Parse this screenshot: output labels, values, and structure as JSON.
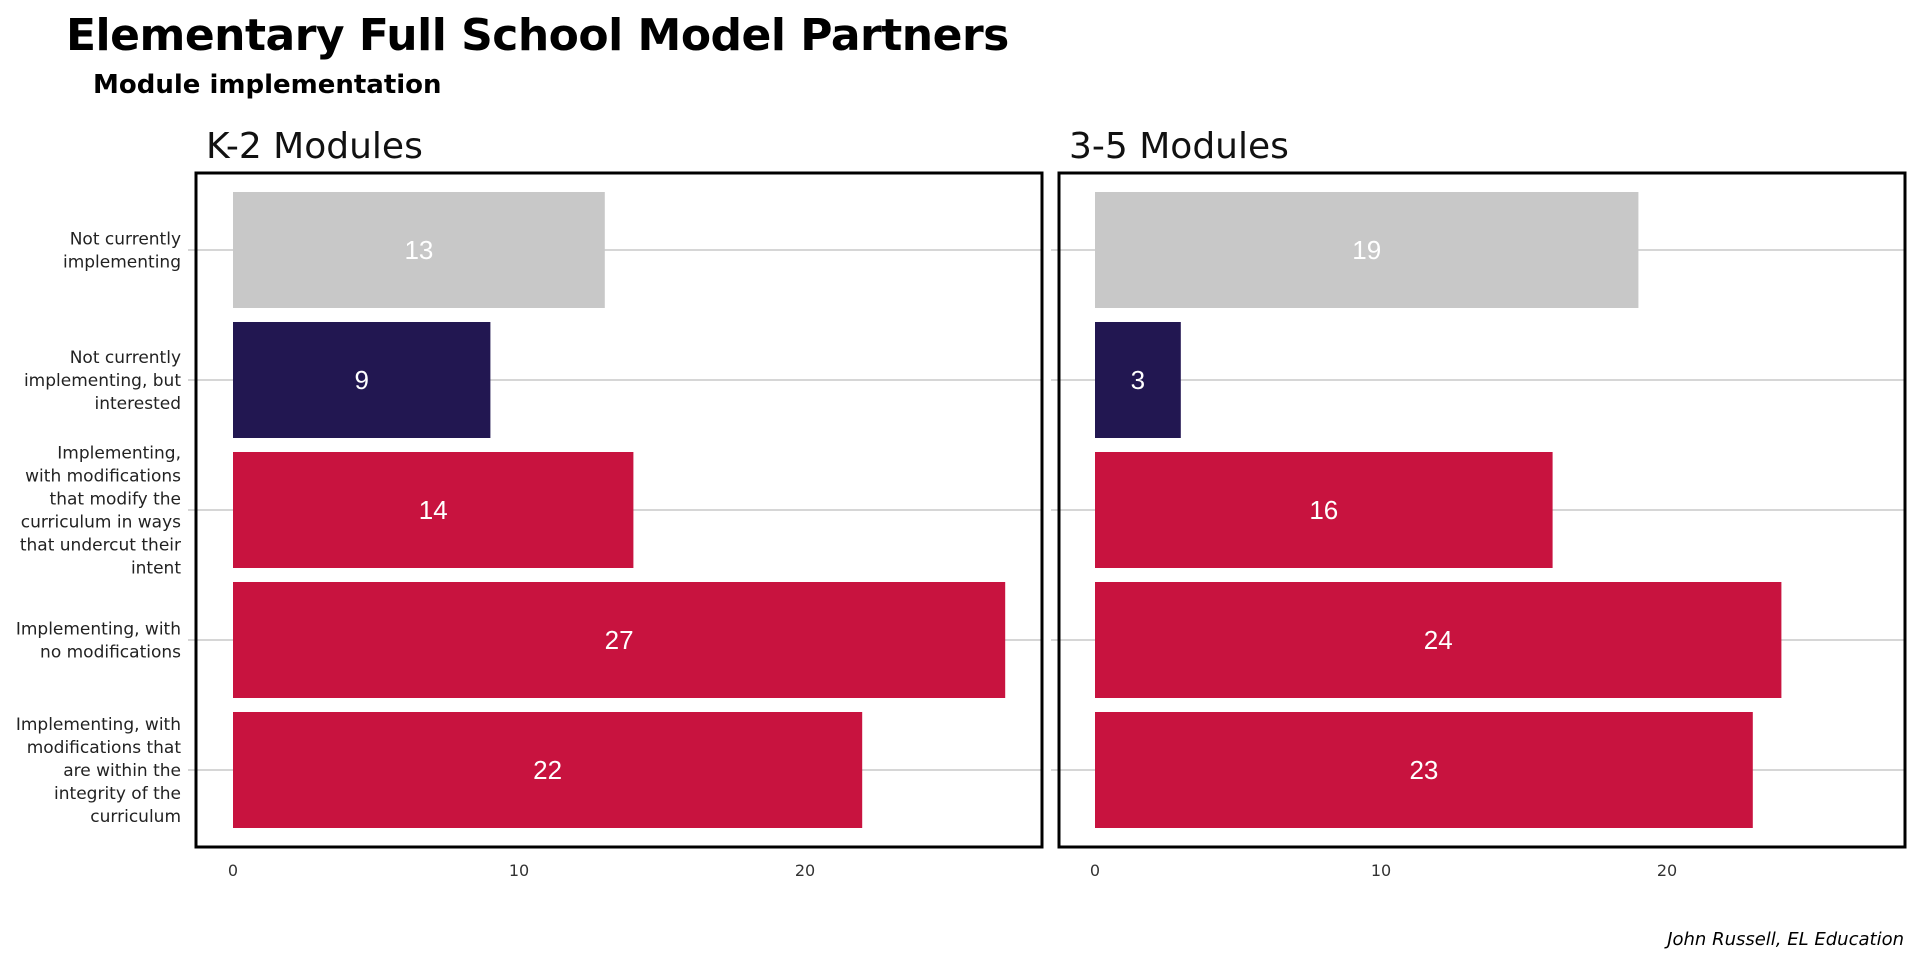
{
  "title": "Elementary Full School Model Partners",
  "subtitle": "Module implementation",
  "caption": "John Russell, EL Education",
  "colors": {
    "grey": "#c8c8c8",
    "navy": "#221751",
    "red": "#c8133f",
    "gridline": "#bdbdbd",
    "frame": "#000000"
  },
  "chart_data": {
    "type": "bar",
    "orientation": "horizontal",
    "categories": [
      [
        "Not currently",
        "implementing"
      ],
      [
        "Not currently",
        "implementing, but",
        "interested"
      ],
      [
        "Implementing,",
        "with modifications",
        "that modify the",
        "curriculum in ways",
        "that undercut their",
        "intent"
      ],
      [
        "Implementing, with",
        "no modifications"
      ],
      [
        "Implementing, with",
        "modifications that",
        "are within the",
        "integrity of the",
        "curriculum"
      ]
    ],
    "bar_colors": [
      "grey",
      "navy",
      "red",
      "red",
      "red"
    ],
    "xlim": [
      0,
      29
    ],
    "xticks": [
      0,
      10,
      20
    ],
    "grid": "horizontal",
    "panels": [
      {
        "title": "K-2 Modules",
        "values": [
          13,
          9,
          14,
          27,
          22
        ]
      },
      {
        "title": "3-5 Modules",
        "values": [
          19,
          3,
          16,
          24,
          23
        ]
      }
    ]
  }
}
